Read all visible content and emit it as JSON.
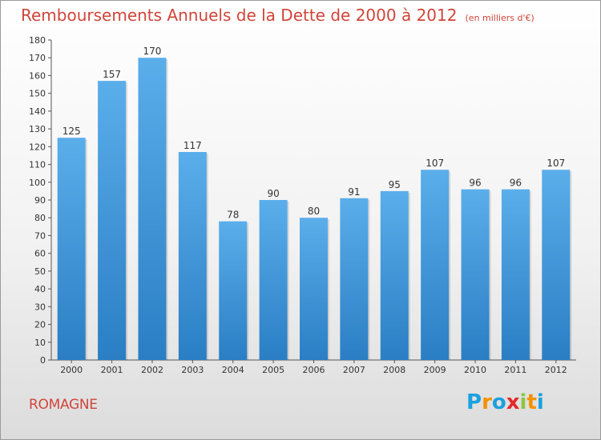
{
  "title": "Remboursements Annuels de la Dette de 2000 à 2012",
  "unit_note": "(en milliers d'€)",
  "commune": "ROMAGNE",
  "logo": {
    "letters": [
      "P",
      "r",
      "o",
      "x",
      "i",
      "t",
      "i"
    ],
    "colors": [
      "#1aa0de",
      "#f39200",
      "#1aa0de",
      "#e42a2a",
      "#8cc63f",
      "#f39200",
      "#1aa0de"
    ]
  },
  "colors": {
    "title": "#d0453a",
    "bar_top": "#5aaeea",
    "bar_bottom": "#2a7ec4"
  },
  "chart_data": {
    "type": "bar",
    "categories": [
      "2000",
      "2001",
      "2002",
      "2003",
      "2004",
      "2005",
      "2006",
      "2007",
      "2008",
      "2009",
      "2010",
      "2011",
      "2012"
    ],
    "values": [
      125,
      157,
      170,
      117,
      78,
      90,
      80,
      91,
      95,
      107,
      96,
      96,
      107
    ],
    "ylim": [
      0,
      180
    ],
    "ytick_step": 10,
    "grid": false,
    "legend": "none",
    "xlabel": "",
    "ylabel": ""
  }
}
